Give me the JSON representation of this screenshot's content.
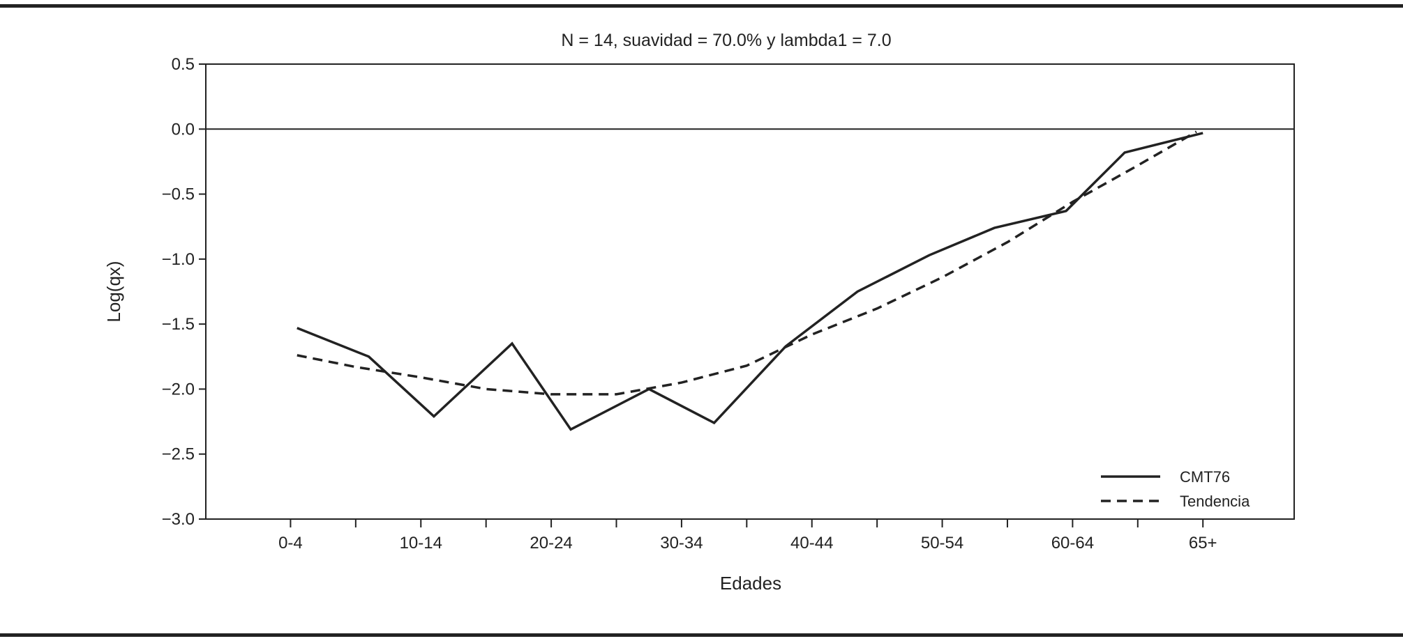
{
  "chart_data": {
    "type": "line",
    "title": "N = 14, suavidad = 70.0% y lambda1 = 7.0",
    "xlabel": "Edades",
    "ylabel": "Log(qx)",
    "ylim": [
      -3.0,
      0.5
    ],
    "yticks": [
      0.5,
      0.0,
      -0.5,
      -1.0,
      -1.5,
      -2.0,
      -2.5,
      -3.0
    ],
    "ytick_labels": [
      "0.5",
      "0.0",
      "−0.5",
      "−1.0",
      "−1.5",
      "−2.0",
      "−2.5",
      "−3.0"
    ],
    "x": [
      0,
      1,
      2,
      3,
      4,
      5,
      6,
      7,
      8,
      9,
      10,
      11,
      12,
      13,
      14
    ],
    "xlim": [
      -1.3,
      15.4
    ],
    "x_tick_labels": [
      {
        "x": 0,
        "label": "0-4"
      },
      {
        "x": 2,
        "label": "10-14"
      },
      {
        "x": 4,
        "label": "20-24"
      },
      {
        "x": 6,
        "label": "30-34"
      },
      {
        "x": 8,
        "label": "40-44"
      },
      {
        "x": 10,
        "label": "50-54"
      },
      {
        "x": 12,
        "label": "60-64"
      },
      {
        "x": 14,
        "label": "65+"
      }
    ],
    "x_minor_ticks": [
      1,
      3,
      5,
      7,
      9,
      11,
      13
    ],
    "reference_line_y": 0.0,
    "legend_position": "bottom-right",
    "grid": false,
    "series": [
      {
        "name": "CMT76",
        "style": "solid",
        "color": "#222222",
        "x": [
          0.1,
          1.2,
          2.2,
          3.4,
          4.3,
          5.5,
          6.5,
          7.6,
          8.7,
          9.8,
          10.8,
          11.9,
          12.8,
          14.0
        ],
        "values": [
          -1.53,
          -1.75,
          -2.21,
          -1.65,
          -2.31,
          -2.0,
          -2.26,
          -1.67,
          -1.25,
          -0.97,
          -0.76,
          -0.63,
          -0.18,
          -0.03
        ]
      },
      {
        "name": "Tendencia",
        "style": "dashed",
        "color": "#222222",
        "x": [
          0.1,
          1.0,
          2.0,
          3.0,
          4.0,
          5.0,
          6.0,
          7.0,
          8.0,
          9.0,
          10.0,
          11.0,
          12.0,
          13.0,
          13.9
        ],
        "values": [
          -1.74,
          -1.83,
          -1.91,
          -2.0,
          -2.04,
          -2.04,
          -1.95,
          -1.82,
          -1.58,
          -1.38,
          -1.14,
          -0.87,
          -0.56,
          -0.28,
          -0.02
        ]
      }
    ]
  }
}
